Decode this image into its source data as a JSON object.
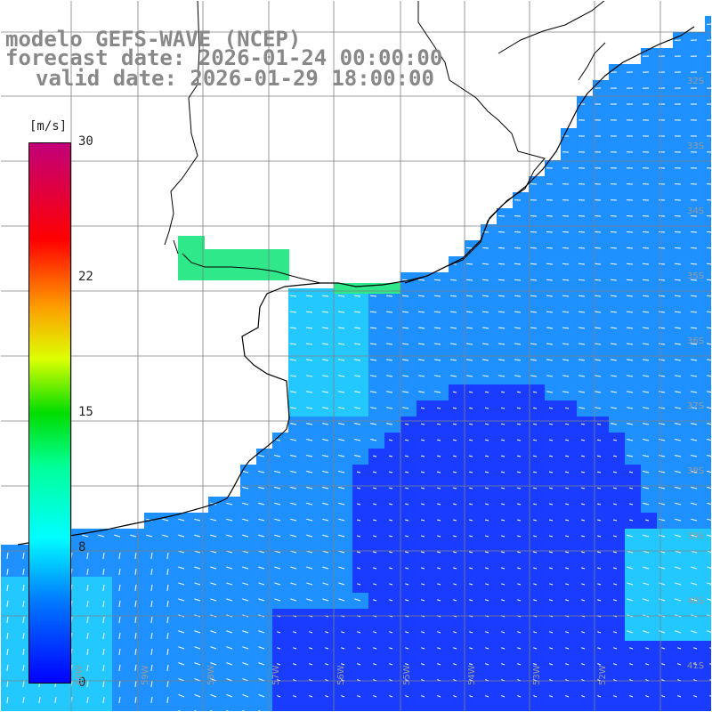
{
  "title": {
    "model": "modelo GEFS-WAVE (NCEP)",
    "forecast": "forecast date: 2026-01-24 00:00:00",
    "valid": "valid date: 2026-01-29 18:00:00"
  },
  "colorbar": {
    "unit": "[m/s]",
    "ticks": [
      "30",
      "22",
      "15",
      "8",
      "0"
    ]
  },
  "grid": {
    "lat_labels": [
      "32S",
      "33S",
      "34S",
      "35S",
      "36S",
      "37S",
      "38S",
      "39S",
      "40S",
      "41S"
    ],
    "lon_labels": [
      "60W",
      "59W",
      "58W",
      "57W",
      "56W",
      "55W",
      "54W",
      "53W",
      "52W"
    ]
  },
  "colors": {
    "calm": "#1a3cff",
    "moderate": "#1e90ff",
    "fresh": "#22c8ff",
    "strong": "#2ee88a",
    "coast": "#000000",
    "gridline": "#808080",
    "vector": "#ffffff"
  }
}
